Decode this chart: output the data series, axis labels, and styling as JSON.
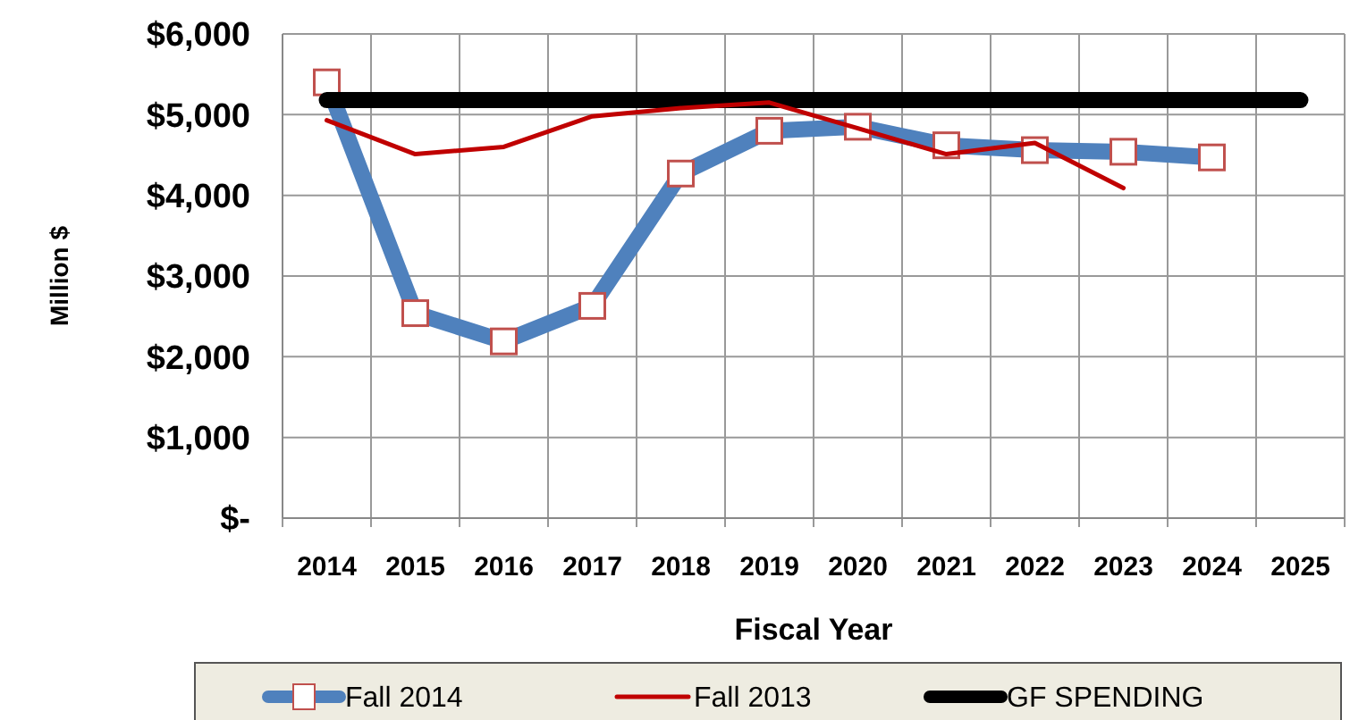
{
  "chart_data": {
    "type": "line",
    "xlabel": "Fiscal Year",
    "ylabel": "Million $",
    "categories": [
      "2014",
      "2015",
      "2016",
      "2017",
      "2018",
      "2019",
      "2020",
      "2021",
      "2022",
      "2023",
      "2024",
      "2025"
    ],
    "ylim": [
      0,
      6000
    ],
    "yticks": [
      {
        "value": 0,
        "label": "$-"
      },
      {
        "value": 1000,
        "label": "$1,000"
      },
      {
        "value": 2000,
        "label": "$2,000"
      },
      {
        "value": 3000,
        "label": "$3,000"
      },
      {
        "value": 4000,
        "label": "$4,000"
      },
      {
        "value": 5000,
        "label": "$5,000"
      },
      {
        "value": 6000,
        "label": "$6,000"
      }
    ],
    "grid": true,
    "legend": "bottom",
    "series": [
      {
        "name": "Fall 2014",
        "color": "#4f81bd",
        "marker": "square",
        "values": [
          5400,
          2540,
          2190,
          2630,
          4270,
          4800,
          4850,
          4620,
          4560,
          4540,
          4470,
          null
        ]
      },
      {
        "name": "Fall 2013",
        "color": "#c00000",
        "marker": "none",
        "values": [
          4930,
          4510,
          4600,
          4980,
          5080,
          5150,
          4830,
          4510,
          4650,
          4090,
          null,
          null
        ]
      },
      {
        "name": "GF SPENDING",
        "color": "#000000",
        "marker": "none",
        "values": [
          5180,
          5180,
          5180,
          5180,
          5180,
          5180,
          5180,
          5180,
          5180,
          5180,
          5180,
          5180
        ]
      }
    ]
  }
}
